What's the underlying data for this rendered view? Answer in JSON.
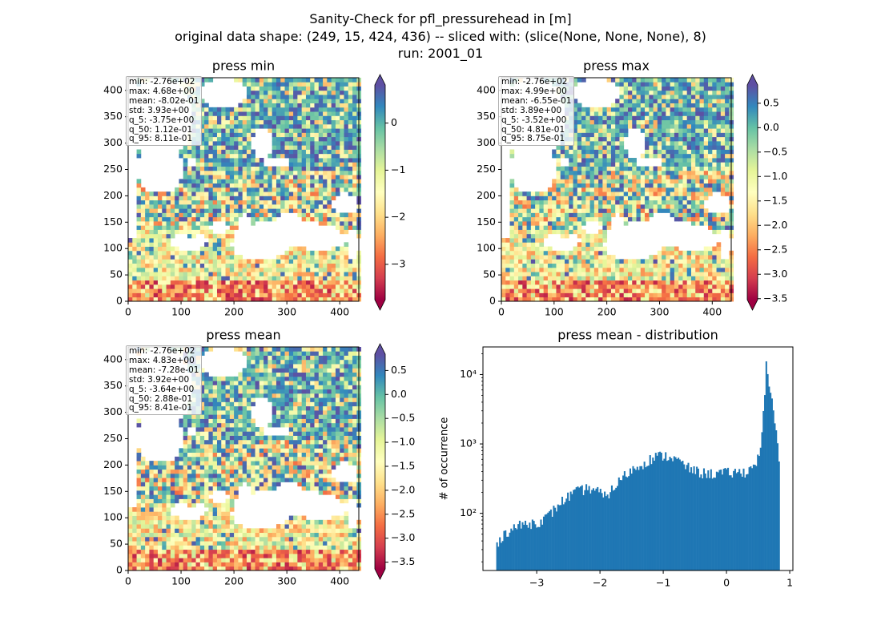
{
  "figure": {
    "title_lines": [
      "Sanity-Check for pfl_pressurehead in [m]",
      "original data shape: (249, 15, 424, 436) -- sliced with: (slice(None, None, None), 8)",
      "run: 2001_01"
    ]
  },
  "colormap": [
    "#9e0142",
    "#d53e4f",
    "#f46d43",
    "#fdae61",
    "#fee08b",
    "#ffffbf",
    "#e6f598",
    "#abdda4",
    "#66c2a5",
    "#3288bd",
    "#5e4fa2"
  ],
  "chart_data": [
    {
      "type": "heatmap",
      "title": "press min",
      "x_ticks": [
        0,
        100,
        200,
        300,
        400
      ],
      "y_ticks": [
        0,
        50,
        100,
        150,
        200,
        250,
        300,
        350,
        400
      ],
      "xlim": [
        0,
        436
      ],
      "ylim": [
        0,
        424
      ],
      "colorbar": {
        "ticks": [
          0,
          -1,
          -2,
          -3
        ],
        "tick_labels": [
          "0",
          "−1",
          "−2",
          "−3"
        ],
        "range": [
          -3.75,
          0.81
        ]
      },
      "stats": [
        "min: -2.76e+02",
        "max: 4.68e+00",
        "mean: -8.02e-01",
        "std: 3.93e+00",
        "q_5: -3.75e+00",
        "q_50: 1.12e-01",
        "q_95: 8.11e-01"
      ]
    },
    {
      "type": "heatmap",
      "title": "press max",
      "x_ticks": [
        0,
        100,
        200,
        300,
        400
      ],
      "y_ticks": [
        0,
        50,
        100,
        150,
        200,
        250,
        300,
        350,
        400
      ],
      "xlim": [
        0,
        436
      ],
      "ylim": [
        0,
        424
      ],
      "colorbar": {
        "ticks": [
          0.5,
          0.0,
          -0.5,
          -1.0,
          -1.5,
          -2.0,
          -2.5,
          -3.0,
          -3.5
        ],
        "tick_labels": [
          "0.5",
          "0.0",
          "−0.5",
          "−1.0",
          "−1.5",
          "−2.0",
          "−2.5",
          "−3.0",
          "−3.5"
        ],
        "range": [
          -3.52,
          0.875
        ]
      },
      "stats": [
        "min: -2.76e+02",
        "max: 4.99e+00",
        "mean: -6.55e-01",
        "std: 3.89e+00",
        "q_5: -3.52e+00",
        "q_50: 4.81e-01",
        "q_95: 8.75e-01"
      ]
    },
    {
      "type": "heatmap",
      "title": "press mean",
      "x_ticks": [
        0,
        100,
        200,
        300,
        400
      ],
      "y_ticks": [
        0,
        50,
        100,
        150,
        200,
        250,
        300,
        350,
        400
      ],
      "xlim": [
        0,
        436
      ],
      "ylim": [
        0,
        424
      ],
      "colorbar": {
        "ticks": [
          0.5,
          0.0,
          -0.5,
          -1.0,
          -1.5,
          -2.0,
          -2.5,
          -3.0,
          -3.5
        ],
        "tick_labels": [
          "0.5",
          "0.0",
          "−0.5",
          "−1.0",
          "−1.5",
          "−2.0",
          "−2.5",
          "−3.0",
          "−3.5"
        ],
        "range": [
          -3.64,
          0.841
        ]
      },
      "stats": [
        "min: -2.76e+02",
        "max: 4.83e+00",
        "mean: -7.28e-01",
        "std: 3.92e+00",
        "q_5: -3.64e+00",
        "q_50: 2.88e-01",
        "q_95: 8.41e-01"
      ]
    },
    {
      "type": "bar",
      "title": "press mean - distribution",
      "ylabel": "# of occurrence",
      "yscale": "log",
      "xlim": [
        -3.85,
        1.05
      ],
      "ylim": [
        15,
        25000
      ],
      "x_ticks": [
        -3,
        -2,
        -1,
        0,
        1
      ],
      "x_tick_labels": [
        "−3",
        "−2",
        "−1",
        "0",
        "1"
      ],
      "y_ticks": [
        100,
        1000,
        10000
      ],
      "y_tick_labels": [
        "10²",
        "10³",
        "10⁴"
      ],
      "bar_color": "#1f77b4",
      "bin_range": [
        -3.64,
        0.841
      ],
      "bin_count": 200,
      "profile": [
        [
          -3.64,
          30
        ],
        [
          -3.6,
          42
        ],
        [
          -3.5,
          52
        ],
        [
          -3.4,
          60
        ],
        [
          -3.3,
          65
        ],
        [
          -3.2,
          70
        ],
        [
          -3.1,
          72
        ],
        [
          -3.0,
          75
        ],
        [
          -2.9,
          80
        ],
        [
          -2.8,
          95
        ],
        [
          -2.7,
          120
        ],
        [
          -2.6,
          150
        ],
        [
          -2.5,
          175
        ],
        [
          -2.4,
          200
        ],
        [
          -2.3,
          215
        ],
        [
          -2.2,
          230
        ],
        [
          -2.1,
          225
        ],
        [
          -2.0,
          200
        ],
        [
          -1.95,
          170
        ],
        [
          -1.9,
          180
        ],
        [
          -1.8,
          225
        ],
        [
          -1.7,
          290
        ],
        [
          -1.6,
          360
        ],
        [
          -1.5,
          420
        ],
        [
          -1.4,
          470
        ],
        [
          -1.3,
          540
        ],
        [
          -1.2,
          610
        ],
        [
          -1.1,
          660
        ],
        [
          -1.0,
          680
        ],
        [
          -0.9,
          660
        ],
        [
          -0.8,
          600
        ],
        [
          -0.7,
          520
        ],
        [
          -0.6,
          450
        ],
        [
          -0.5,
          410
        ],
        [
          -0.4,
          385
        ],
        [
          -0.3,
          375
        ],
        [
          -0.2,
          375
        ],
        [
          -0.1,
          380
        ],
        [
          0.0,
          385
        ],
        [
          0.1,
          385
        ],
        [
          0.2,
          390
        ],
        [
          0.3,
          400
        ],
        [
          0.4,
          450
        ],
        [
          0.5,
          620
        ],
        [
          0.55,
          1200
        ],
        [
          0.6,
          3800
        ],
        [
          0.63,
          17000
        ],
        [
          0.66,
          8000
        ],
        [
          0.7,
          5000
        ],
        [
          0.74,
          3200
        ],
        [
          0.78,
          1500
        ],
        [
          0.82,
          700
        ],
        [
          0.841,
          520
        ]
      ]
    }
  ]
}
